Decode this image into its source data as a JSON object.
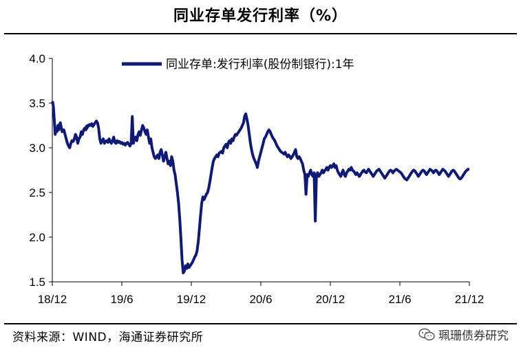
{
  "header": {
    "title": "同业存单发行利率（%）"
  },
  "footer": {
    "source": "资料来源：WIND，海通证券研究所",
    "watermark": "珮珊债券研究",
    "watermark_icon": "wechat-icon"
  },
  "chart_data": {
    "type": "line",
    "title": "同业存单发行利率（%）",
    "xlabel": "",
    "ylabel": "",
    "ylim": [
      1.5,
      4.0
    ],
    "yticks": [
      "4.0",
      "3.5",
      "3.0",
      "2.5",
      "2.0",
      "1.5"
    ],
    "xticks": [
      "18/12",
      "19/6",
      "19/12",
      "20/6",
      "20/12",
      "21/6",
      "21/12"
    ],
    "grid": false,
    "legend_position": "top",
    "line_color": "#0d1a7a",
    "series": [
      {
        "name": "同业存单:发行利率(股份制银行):1年",
        "x": [
          0.0,
          0.05,
          0.1,
          0.18,
          0.25,
          0.32,
          0.4,
          0.48,
          0.55,
          0.62,
          0.7,
          0.78,
          0.85,
          0.92,
          1.0,
          1.1,
          1.2,
          1.3,
          1.4,
          1.5,
          1.6,
          1.7,
          1.8,
          1.9,
          2.0,
          2.1,
          2.2,
          2.3,
          2.4,
          2.5,
          2.6,
          2.7,
          2.8,
          2.9,
          2.95,
          3.0,
          3.05,
          3.1,
          3.2,
          3.3,
          3.4,
          3.5,
          3.6,
          3.7,
          3.8,
          3.9,
          4.0,
          4.1,
          4.2,
          4.3,
          4.4,
          4.5,
          4.6,
          4.7,
          4.8,
          4.9,
          5.0,
          5.1,
          5.2,
          5.3,
          5.4,
          5.5,
          5.6,
          5.7,
          5.8,
          5.9,
          6.0,
          6.1,
          6.2,
          6.3,
          6.4,
          6.5,
          6.6,
          6.7,
          6.8,
          6.9,
          7.0,
          7.1,
          7.2,
          7.3,
          7.4,
          7.5,
          7.6,
          7.7,
          7.8,
          7.9,
          8.0,
          8.1,
          8.2,
          8.3,
          8.4,
          8.5,
          8.6,
          8.7,
          8.8,
          8.9,
          9.0,
          9.1,
          9.2,
          9.3,
          9.4,
          9.5,
          9.6,
          9.7,
          9.8,
          9.9,
          10.0,
          10.1,
          10.2,
          10.3,
          10.4,
          10.5,
          10.6,
          10.7,
          10.8,
          10.9,
          11.0,
          11.1,
          11.2,
          11.3,
          11.4,
          11.5,
          11.6,
          11.7,
          11.8,
          11.9,
          12.0,
          12.1,
          12.2,
          12.3,
          12.4,
          12.5,
          12.6,
          12.7,
          12.8,
          12.9,
          13.0,
          13.1,
          13.2,
          13.3,
          13.4,
          13.5,
          13.6,
          13.7,
          13.8,
          13.9,
          14.0,
          14.1,
          14.2,
          14.3,
          14.4,
          14.5,
          14.6,
          14.7,
          14.8,
          14.9,
          15.0,
          15.1,
          15.2,
          15.3,
          15.4,
          15.5,
          15.6,
          15.7,
          15.8,
          15.9,
          16.0,
          16.1,
          16.2,
          16.3,
          16.4,
          16.5,
          16.6,
          16.7,
          16.8,
          16.9,
          17.0,
          17.1,
          17.2,
          17.3,
          17.4,
          17.5,
          17.6,
          17.7,
          17.8,
          17.9,
          18.0,
          18.1,
          18.2,
          18.3,
          18.4,
          18.5,
          18.6,
          18.7,
          18.8,
          18.9,
          19.0,
          19.1,
          19.2,
          19.3,
          19.4,
          19.5,
          19.6,
          19.7,
          19.8,
          19.9,
          20.0,
          20.1,
          20.2,
          20.3,
          20.4,
          20.5,
          20.6,
          20.7,
          20.8,
          20.9,
          21.0,
          21.1,
          21.2,
          21.3,
          21.4,
          21.5,
          21.6,
          21.7,
          21.8,
          21.9,
          22.0,
          22.1,
          22.2,
          22.3,
          22.4,
          22.5,
          22.6,
          22.7,
          22.8,
          22.9,
          23.0,
          23.1,
          23.2,
          23.3,
          23.4,
          23.5,
          23.6,
          23.7,
          23.8,
          23.9,
          24.0,
          24.1,
          24.2,
          24.3,
          24.4,
          24.5,
          24.6,
          24.7,
          24.8,
          24.9,
          25.0,
          25.1,
          25.2,
          25.3,
          25.4,
          25.5,
          25.6,
          25.7,
          25.8,
          25.9,
          26.0,
          26.1,
          26.2,
          26.3,
          26.4,
          26.5,
          26.6,
          26.7,
          26.8,
          26.9,
          27.0,
          27.1,
          27.2,
          27.3,
          27.4,
          27.5,
          27.6,
          27.7,
          27.8,
          27.9,
          28.0,
          28.1,
          28.2,
          28.3,
          28.4,
          28.5,
          28.6,
          28.7,
          28.8,
          28.9,
          29.0,
          29.1,
          29.2,
          29.3,
          29.4,
          29.5,
          29.6,
          29.7,
          29.8,
          29.9,
          30.0,
          30.1,
          30.2,
          30.3,
          30.4,
          30.5,
          30.6,
          30.7,
          30.8,
          30.9,
          31.0,
          31.1,
          31.2,
          31.3,
          31.4,
          31.5,
          31.6,
          31.7,
          31.8,
          31.9,
          32.0,
          32.1,
          32.2,
          32.3,
          32.4,
          32.5,
          32.6,
          32.7,
          32.8,
          32.9,
          33.0,
          33.1,
          33.2,
          33.3,
          33.4,
          33.5,
          33.6,
          33.7,
          33.8,
          33.9,
          34.0,
          34.1,
          34.2,
          34.3,
          34.4,
          34.5,
          34.6,
          34.7,
          34.8,
          34.9,
          35.0,
          35.1,
          35.2,
          35.3,
          35.4,
          35.5,
          35.6,
          35.7,
          35.8,
          35.9,
          36.0
        ],
        "y": [
          3.52,
          3.5,
          3.45,
          3.3,
          3.15,
          3.22,
          3.18,
          3.25,
          3.2,
          3.26,
          3.28,
          3.22,
          3.18,
          3.2,
          3.2,
          3.15,
          3.1,
          3.05,
          3.02,
          3.0,
          3.05,
          3.08,
          3.07,
          3.1,
          3.15,
          3.12,
          3.05,
          3.1,
          3.12,
          3.18,
          3.15,
          3.2,
          3.22,
          3.2,
          3.24,
          3.22,
          3.25,
          3.24,
          3.26,
          3.25,
          3.27,
          3.24,
          3.26,
          3.28,
          3.3,
          3.28,
          3.22,
          3.1,
          3.05,
          3.08,
          3.1,
          3.05,
          3.07,
          3.08,
          3.06,
          3.1,
          3.07,
          3.05,
          3.08,
          3.12,
          3.06,
          3.05,
          3.08,
          3.06,
          3.07,
          3.05,
          3.06,
          3.04,
          3.05,
          3.03,
          3.05,
          3.06,
          3.04,
          3.02,
          3.05,
          3.35,
          3.05,
          3.1,
          3.12,
          3.08,
          3.15,
          3.18,
          3.14,
          3.2,
          3.25,
          3.22,
          3.18,
          3.15,
          3.2,
          3.12,
          3.05,
          3.1,
          3.0,
          2.95,
          2.9,
          2.88,
          2.9,
          2.92,
          2.88,
          2.95,
          2.98,
          2.92,
          2.85,
          2.9,
          2.95,
          2.88,
          2.82,
          2.85,
          2.8,
          2.9,
          2.85,
          2.75,
          2.7,
          2.6,
          2.5,
          2.38,
          2.2,
          1.98,
          1.75,
          1.6,
          1.62,
          1.68,
          1.65,
          1.7,
          1.66,
          1.68,
          1.7,
          1.72,
          1.75,
          1.78,
          1.8,
          1.85,
          1.95,
          2.1,
          2.25,
          2.38,
          2.45,
          2.42,
          2.45,
          2.48,
          2.5,
          2.55,
          2.62,
          2.7,
          2.78,
          2.85,
          2.88,
          2.9,
          2.92,
          2.9,
          2.94,
          2.95,
          2.96,
          2.94,
          3.0,
          3.02,
          3.04,
          3.0,
          3.06,
          3.08,
          3.05,
          3.1,
          3.08,
          3.12,
          3.15,
          3.14,
          3.16,
          3.18,
          3.2,
          3.22,
          3.25,
          3.28,
          3.35,
          3.38,
          3.32,
          3.25,
          3.15,
          3.05,
          2.98,
          2.92,
          2.88,
          2.85,
          2.82,
          2.78,
          2.85,
          2.9,
          2.95,
          3.0,
          3.05,
          3.1,
          3.12,
          3.15,
          3.18,
          3.2,
          3.18,
          3.15,
          3.12,
          3.1,
          3.08,
          3.05,
          3.02,
          3.0,
          2.98,
          2.96,
          2.95,
          2.94,
          2.93,
          2.95,
          2.92,
          2.9,
          2.92,
          2.9,
          2.88,
          2.9,
          2.92,
          2.95,
          2.98,
          2.9,
          2.88,
          2.9,
          2.88,
          2.85,
          2.82,
          2.75,
          2.7,
          2.48,
          2.7,
          2.68,
          2.72,
          2.75,
          2.7,
          2.68,
          2.72,
          2.18,
          2.7,
          2.72,
          2.68,
          2.7,
          2.72,
          2.75,
          2.72,
          2.74,
          2.76,
          2.78,
          2.75,
          2.78,
          2.8,
          2.78,
          2.8,
          2.82,
          2.78,
          2.8,
          2.75,
          2.72,
          2.7,
          2.68,
          2.72,
          2.75,
          2.7,
          2.68,
          2.72,
          2.74,
          2.76,
          2.75,
          2.78,
          2.75,
          2.74,
          2.72,
          2.7,
          2.72,
          2.7,
          2.68,
          2.7,
          2.72,
          2.74,
          2.75,
          2.73,
          2.72,
          2.74,
          2.76,
          2.74,
          2.72,
          2.7,
          2.68,
          2.7,
          2.72,
          2.74,
          2.75,
          2.76,
          2.74,
          2.72,
          2.7,
          2.68,
          2.66,
          2.68,
          2.7,
          2.72,
          2.74,
          2.75,
          2.74,
          2.72,
          2.74,
          2.75,
          2.76,
          2.75,
          2.74,
          2.73,
          2.72,
          2.7,
          2.68,
          2.66,
          2.65,
          2.64,
          2.66,
          2.68,
          2.7,
          2.72,
          2.74,
          2.75,
          2.74,
          2.72,
          2.7,
          2.68,
          2.7,
          2.72,
          2.74,
          2.75,
          2.74,
          2.72,
          2.7,
          2.72,
          2.74,
          2.76,
          2.75,
          2.74,
          2.72,
          2.74,
          2.75,
          2.74,
          2.72,
          2.7,
          2.72,
          2.74,
          2.76,
          2.75,
          2.74,
          2.72,
          2.7,
          2.68,
          2.7,
          2.72,
          2.74,
          2.75,
          2.74,
          2.72,
          2.7,
          2.68,
          2.66,
          2.65,
          2.66,
          2.68,
          2.7,
          2.72,
          2.74,
          2.75,
          2.76,
          2.76
        ]
      }
    ]
  }
}
